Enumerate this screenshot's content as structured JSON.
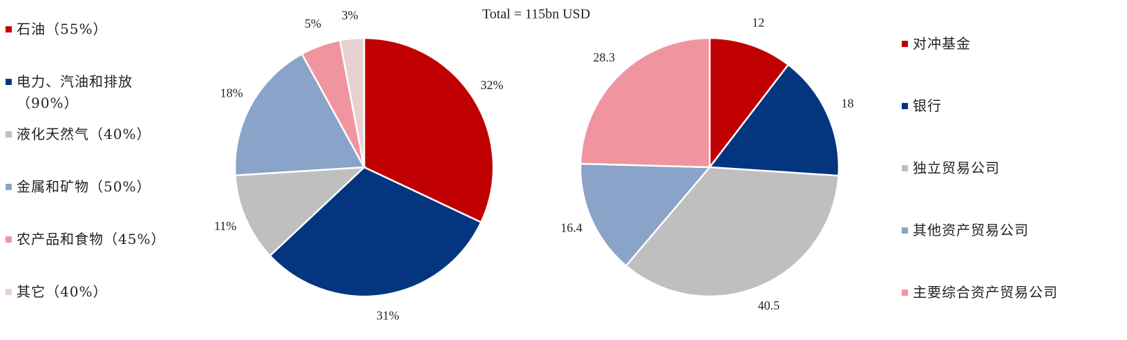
{
  "chart_data": [
    {
      "type": "pie",
      "categories": [
        "石油（55%）",
        "电力、汽油和排放（90%）",
        "液化天然气（40%）",
        "金属和矿物（50%）",
        "农产品和食物（45%）",
        "其它（40%）"
      ],
      "values": [
        32,
        31,
        11,
        18,
        5,
        3
      ],
      "value_labels": [
        "32%",
        "31%",
        "11%",
        "18%",
        "5%",
        "3%"
      ],
      "colors": [
        "#c00000",
        "#03367f",
        "#bfbfbf",
        "#8aa3c8",
        "#f0959f",
        "#e8d0d1"
      ],
      "legend": "left"
    },
    {
      "type": "pie",
      "title": "Total = 115bn USD",
      "categories": [
        "对冲基金",
        "银行",
        "独立贸易公司",
        "其他资产贸易公司",
        "主要综合资产贸易公司"
      ],
      "values": [
        12,
        18,
        40.5,
        16.4,
        28.3
      ],
      "colors": [
        "#c00000",
        "#03367f",
        "#bfbfbf",
        "#8aa3c8",
        "#f0959f"
      ],
      "legend": "right"
    }
  ]
}
